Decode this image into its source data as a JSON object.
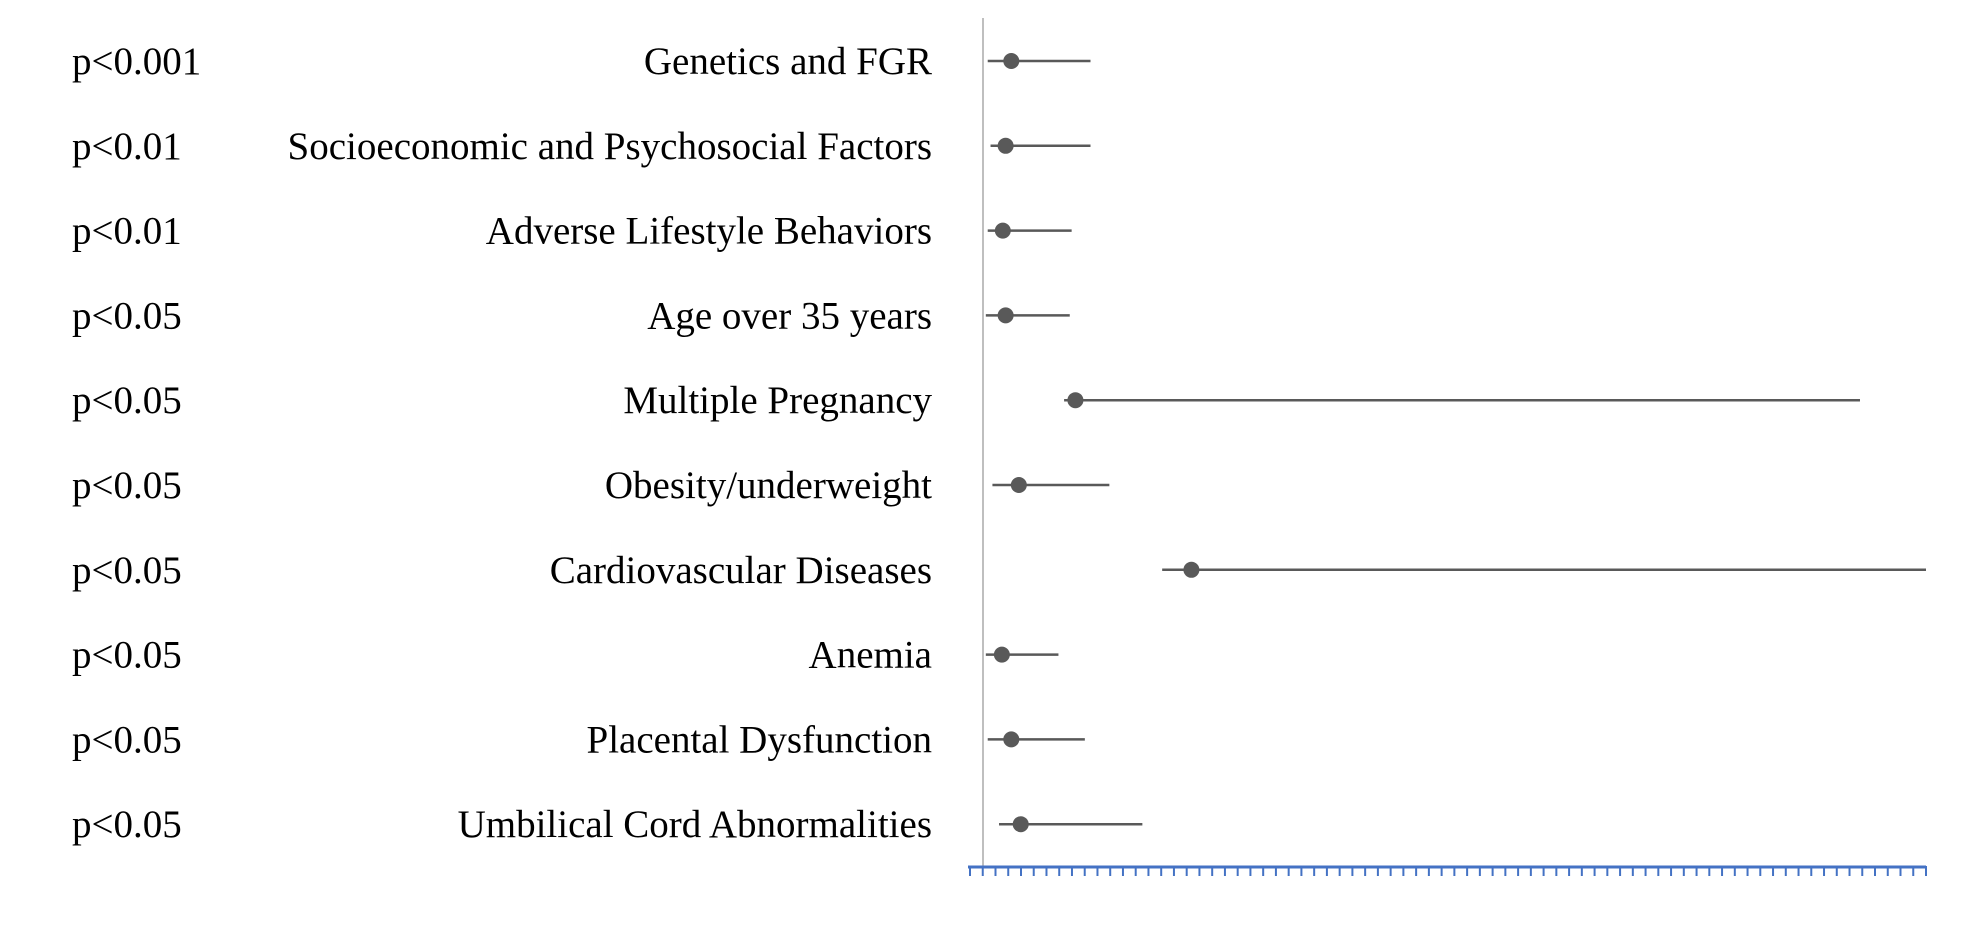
{
  "chart_data": {
    "type": "scatter",
    "title": "",
    "xlabel": "",
    "ylabel": "",
    "xlim": [
      0,
      100
    ],
    "grid": false,
    "legend": "none",
    "x_tick_count": 75,
    "colors": {
      "point": "#595959",
      "whisker": "#595959",
      "axis": "#4472c4",
      "zero_line": "#bfbfbf",
      "text": "#000000"
    },
    "rows": [
      {
        "label": "Genetics and FGR",
        "p": "p<0.001",
        "estimate": 3.0,
        "ci_low": 0.5,
        "ci_high": 11.4
      },
      {
        "label": "Socioeconomic and Psychosocial Factors",
        "p": "p<0.01",
        "estimate": 2.4,
        "ci_low": 0.8,
        "ci_high": 11.4
      },
      {
        "label": "Adverse Lifestyle Behaviors",
        "p": "p<0.01",
        "estimate": 2.1,
        "ci_low": 0.5,
        "ci_high": 9.4
      },
      {
        "label": "Age over 35 years",
        "p": "p<0.05",
        "estimate": 2.4,
        "ci_low": 0.3,
        "ci_high": 9.2
      },
      {
        "label": "Multiple Pregnancy",
        "p": "p<0.05",
        "estimate": 9.8,
        "ci_low": 8.6,
        "ci_high": 93.0
      },
      {
        "label": "Obesity/underweight",
        "p": "p<0.05",
        "estimate": 3.8,
        "ci_low": 1.0,
        "ci_high": 13.4
      },
      {
        "label": "Cardiovascular Diseases",
        "p": "p<0.05",
        "estimate": 22.1,
        "ci_low": 19.0,
        "ci_high": 100.0
      },
      {
        "label": "Anemia",
        "p": "p<0.05",
        "estimate": 2.0,
        "ci_low": 0.3,
        "ci_high": 8.0
      },
      {
        "label": "Placental Dysfunction",
        "p": "p<0.05",
        "estimate": 3.0,
        "ci_low": 0.5,
        "ci_high": 10.8
      },
      {
        "label": "Umbilical Cord Abnormalities",
        "p": "p<0.05",
        "estimate": 4.0,
        "ci_low": 1.7,
        "ci_high": 16.9
      }
    ]
  }
}
